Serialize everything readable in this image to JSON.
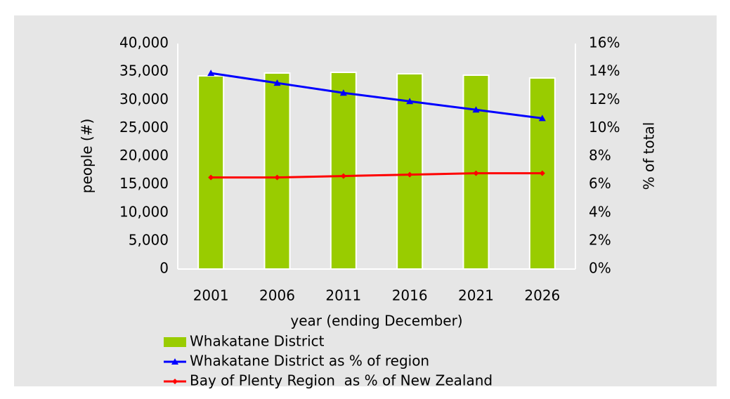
{
  "chart_data": {
    "type": "bar",
    "categories": [
      "2001",
      "2006",
      "2011",
      "2016",
      "2021",
      "2026"
    ],
    "x_label": "year (ending December)",
    "y_label": "people (#)",
    "y2_label": "% of total",
    "ylim": [
      0,
      40000
    ],
    "yticks": [
      0,
      {
        "value": 5000,
        "label": "5,000"
      },
      {
        "value": 10000,
        "label": "10,000"
      },
      {
        "value": 15000,
        "label": "15,000"
      },
      {
        "value": 20000,
        "label": "20,000"
      },
      {
        "value": 25000,
        "label": "25,000"
      },
      {
        "value": 30000,
        "label": "30,000"
      },
      {
        "value": 35000,
        "label": "35,000"
      },
      {
        "value": 40000,
        "label": "40,000"
      }
    ],
    "y2lim": [
      0,
      16
    ],
    "y2ticks": [
      {
        "value": 0,
        "label": "0%"
      },
      {
        "value": 2,
        "label": "2%"
      },
      {
        "value": 4,
        "label": "4%"
      },
      {
        "value": 6,
        "label": "6%"
      },
      {
        "value": 8,
        "label": "8%"
      },
      {
        "value": 10,
        "label": "10%"
      },
      {
        "value": 12,
        "label": "12%"
      },
      {
        "value": 14,
        "label": "14%"
      },
      {
        "value": 16,
        "label": "16%"
      }
    ],
    "series": [
      {
        "name": "Whakatane District",
        "type": "bar",
        "color": "#99cc00",
        "values": [
          34270,
          34770,
          34890,
          34640,
          34390,
          33890
        ]
      },
      {
        "name": "Whakatane District as % of region",
        "type": "line",
        "axis": "y2",
        "color": "#0000ff",
        "values": [
          13.9,
          13.2,
          12.5,
          11.9,
          11.3,
          10.7
        ]
      },
      {
        "name": "Bay of Plenty Region  as % of New Zealand",
        "type": "line",
        "axis": "y2",
        "color": "#ff0000",
        "values": [
          6.5,
          6.5,
          6.6,
          6.7,
          6.8,
          6.8
        ]
      }
    ],
    "legend": "bottom"
  }
}
